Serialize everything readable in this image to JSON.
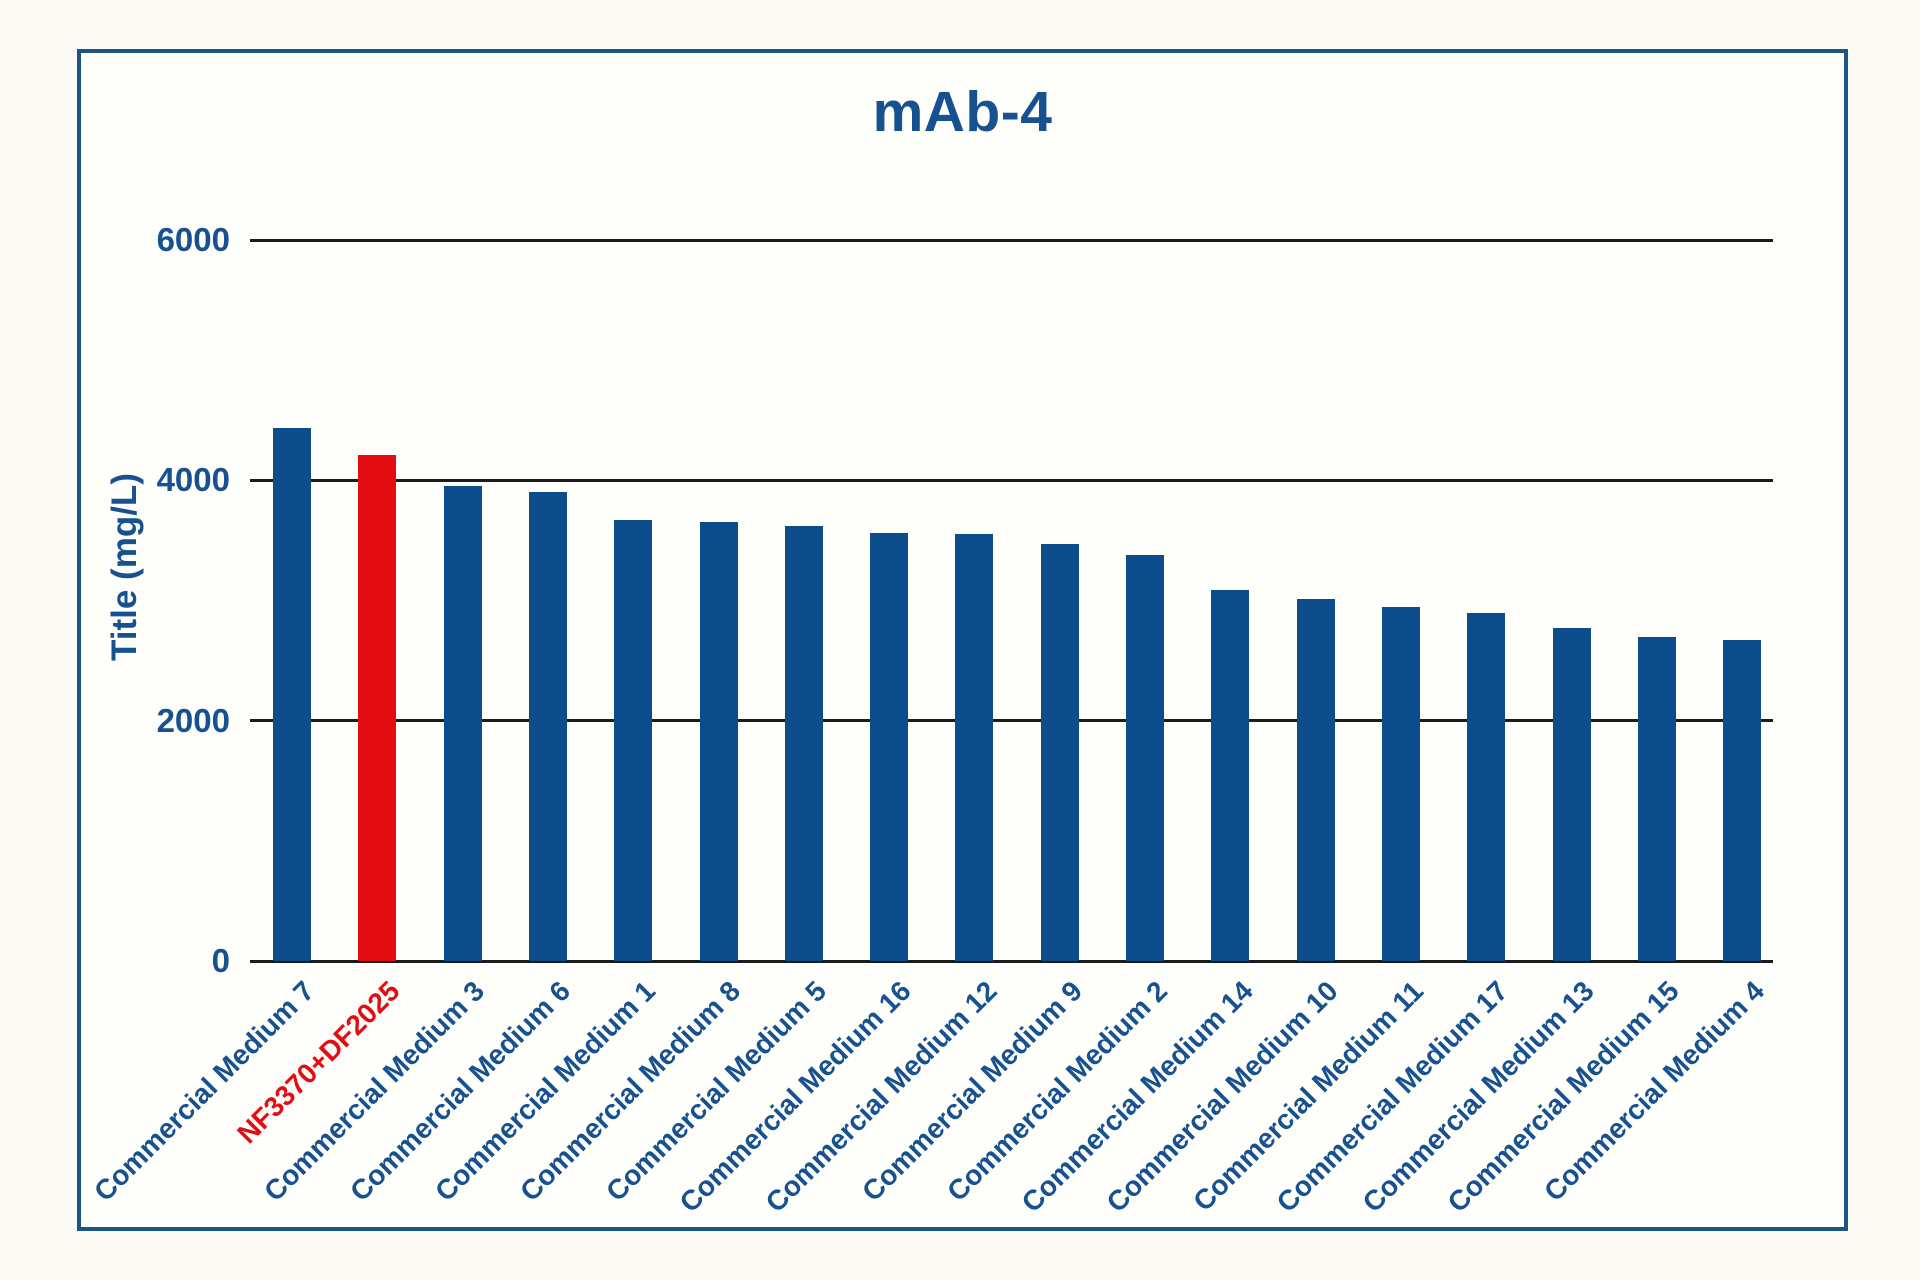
{
  "chart_data": {
    "type": "bar",
    "title": "mAb-4",
    "xlabel": "",
    "ylabel": "Title (mg/L)",
    "categories": [
      "Commercial Medium 7",
      "NF3370+DF2025",
      "Commercial Medium 3",
      "Commercial Medium 6",
      "Commercial Medium 1",
      "Commercial Medium 8",
      "Commercial Medium 5",
      "Commercial Medium 16",
      "Commercial Medium 12",
      "Commercial Medium 9",
      "Commercial Medium 2",
      "Commercial Medium 14",
      "Commercial Medium 10",
      "Commercial Medium 11",
      "Commercial Medium 17",
      "Commercial Medium 13",
      "Commercial Medium 15",
      "Commercial Medium 4"
    ],
    "values": [
      4440,
      4210,
      3950,
      3900,
      3670,
      3650,
      3620,
      3560,
      3550,
      3470,
      3380,
      3090,
      3010,
      2950,
      2900,
      2770,
      2700,
      2670
    ],
    "yticks": [
      0,
      2000,
      4000,
      6000
    ],
    "ylim": [
      0,
      6500
    ],
    "grid": "horizontal",
    "legend_position": "none",
    "highlight_index": 1,
    "bar_color": "#0d4c8a",
    "highlight_color": "#e40c13",
    "text_color": "#17518f",
    "highlight_text_color": "#e40c13",
    "gridline_color": "#1b1b1b",
    "frame_color": "#1d5586"
  }
}
